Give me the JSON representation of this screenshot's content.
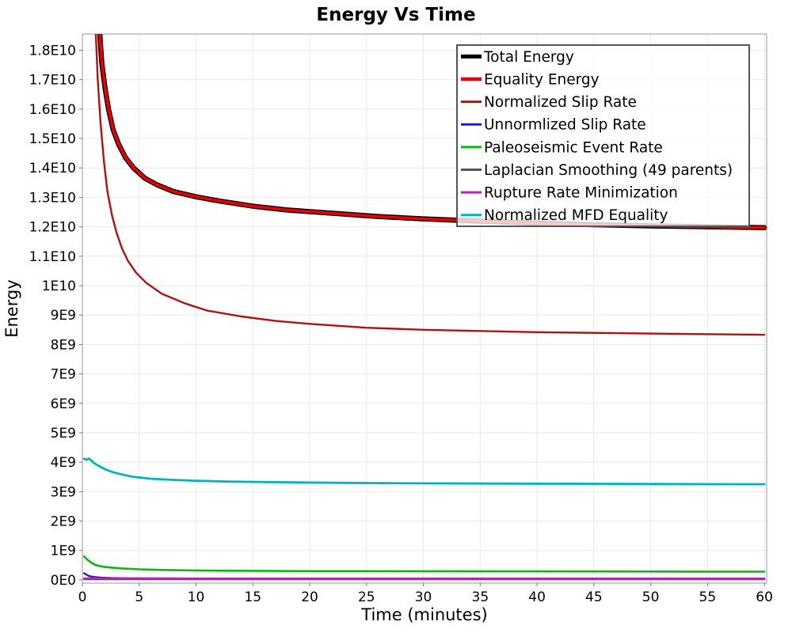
{
  "chart_data": {
    "type": "line",
    "title": "Energy Vs Time",
    "xlabel": "Time (minutes)",
    "ylabel": "Energy",
    "xlim": [
      0,
      60.2
    ],
    "ylim_e9": [
      -0.11,
      18.55
    ],
    "grid": true,
    "x_ticks": [
      0,
      5,
      10,
      15,
      20,
      25,
      30,
      35,
      40,
      45,
      50,
      55,
      60
    ],
    "y_ticks": [
      {
        "v": 0,
        "label": "0E0"
      },
      {
        "v": 1,
        "label": "1E9"
      },
      {
        "v": 2,
        "label": "2E9"
      },
      {
        "v": 3,
        "label": "3E9"
      },
      {
        "v": 4,
        "label": "4E9"
      },
      {
        "v": 5,
        "label": "5E9"
      },
      {
        "v": 6,
        "label": "6E9"
      },
      {
        "v": 7,
        "label": "7E9"
      },
      {
        "v": 8,
        "label": "8E9"
      },
      {
        "v": 9,
        "label": "9E9"
      },
      {
        "v": 10,
        "label": "1E10"
      },
      {
        "v": 11,
        "label": "1.1E10"
      },
      {
        "v": 12,
        "label": "1.2E10"
      },
      {
        "v": 13,
        "label": "1.3E10"
      },
      {
        "v": 14,
        "label": "1.4E10"
      },
      {
        "v": 15,
        "label": "1.5E10"
      },
      {
        "v": 16,
        "label": "1.6E10"
      },
      {
        "v": 17,
        "label": "1.7E10"
      },
      {
        "v": 18,
        "label": "1.8E10"
      }
    ],
    "colors": {
      "grid": "#e9e9e9",
      "plot_border": "#999999",
      "tick_mark": "#777777",
      "legend_border": "#555555",
      "legend_bg": "rgba(255,255,255,0.78)"
    },
    "legend_position": "top-right",
    "series": [
      {
        "name": "Total Energy",
        "color": "#000000",
        "line_width": 6.5,
        "legend_swatch_width": 5,
        "x": [
          1.52,
          1.7,
          2.0,
          2.3,
          2.7,
          3.2,
          3.8,
          4.5,
          5.5,
          6.6,
          8.0,
          10.0,
          12.0,
          15.0,
          18.0,
          22.0,
          26.0,
          30.0,
          35.0,
          40.0,
          45.0,
          50.0,
          55.0,
          60.0
        ],
        "y_e9": [
          18.65,
          17.6,
          16.7,
          16.0,
          15.3,
          14.8,
          14.35,
          14.0,
          13.65,
          13.42,
          13.2,
          13.02,
          12.88,
          12.7,
          12.57,
          12.46,
          12.35,
          12.27,
          12.19,
          12.12,
          12.07,
          12.03,
          12.0,
          11.97
        ]
      },
      {
        "name": "Equality Energy",
        "color": "#e60000",
        "line_width": 3.8,
        "legend_swatch_width": 4.5,
        "x": [
          1.52,
          1.7,
          2.0,
          2.3,
          2.7,
          3.2,
          3.8,
          4.5,
          5.5,
          6.6,
          8.0,
          10.0,
          12.0,
          15.0,
          18.0,
          22.0,
          26.0,
          30.0,
          35.0,
          40.0,
          45.0,
          50.0,
          55.0,
          60.0
        ],
        "y_e9": [
          18.65,
          17.6,
          16.7,
          16.0,
          15.3,
          14.8,
          14.35,
          14.0,
          13.65,
          13.42,
          13.2,
          13.02,
          12.88,
          12.7,
          12.57,
          12.46,
          12.35,
          12.27,
          12.19,
          12.12,
          12.07,
          12.03,
          12.0,
          11.97
        ]
      },
      {
        "name": "Normalized Slip Rate",
        "color": "#b01212",
        "line_width": 2.4,
        "legend_swatch_width": 3,
        "x": [
          1.17,
          1.35,
          1.6,
          1.9,
          2.2,
          2.6,
          3.0,
          3.5,
          4.0,
          4.7,
          5.6,
          7.0,
          9.0,
          11.0,
          14.0,
          17.0,
          20.0,
          25.0,
          30.0,
          40.0,
          50.0,
          60.0
        ],
        "y_e9": [
          18.65,
          17.0,
          15.5,
          14.2,
          13.2,
          12.4,
          11.8,
          11.25,
          10.85,
          10.45,
          10.1,
          9.72,
          9.4,
          9.15,
          8.95,
          8.8,
          8.7,
          8.57,
          8.5,
          8.42,
          8.37,
          8.33
        ]
      },
      {
        "name": "Unnormlized Slip Rate",
        "color": "#2222b2",
        "line_width": 2.4,
        "legend_swatch_width": 3,
        "x": [
          0.15,
          0.3,
          0.6,
          1.0,
          1.6,
          2.5,
          4.0,
          6.0,
          10.0,
          20.0,
          40.0,
          60.0
        ],
        "y_e9": [
          0.23,
          0.19,
          0.13,
          0.1,
          0.08,
          0.065,
          0.055,
          0.05,
          0.045,
          0.042,
          0.04,
          0.04
        ]
      },
      {
        "name": "Paleoseismic Event Rate",
        "color": "#0cb80c",
        "line_width": 2.6,
        "legend_swatch_width": 3,
        "x": [
          0.15,
          0.4,
          0.8,
          1.2,
          1.8,
          2.5,
          3.5,
          5.0,
          7.0,
          10.0,
          15.0,
          20.0,
          30.0,
          40.0,
          50.0,
          60.0
        ],
        "y_e9": [
          0.8,
          0.7,
          0.58,
          0.5,
          0.45,
          0.42,
          0.39,
          0.36,
          0.34,
          0.32,
          0.31,
          0.3,
          0.295,
          0.29,
          0.285,
          0.28
        ]
      },
      {
        "name": "Laplacian Smoothing (49 parents)",
        "color": "#555555",
        "line_width": 2.2,
        "legend_swatch_width": 3,
        "x": [
          0.15,
          60.0
        ],
        "y_e9": [
          0.022,
          0.02
        ]
      },
      {
        "name": "Rupture Rate Minimization",
        "color": "#bb22bb",
        "line_width": 2.6,
        "legend_swatch_width": 3,
        "x": [
          0.15,
          2.0,
          10.0,
          60.0
        ],
        "y_e9": [
          0.05,
          0.048,
          0.046,
          0.045
        ]
      },
      {
        "name": "Normalized MFD Equality",
        "color": "#00b4be",
        "line_width": 2.8,
        "legend_swatch_width": 3,
        "x": [
          0.15,
          0.35,
          0.6,
          1.0,
          1.5,
          2.0,
          2.7,
          3.5,
          4.5,
          6.0,
          8.0,
          10.0,
          13.0,
          17.0,
          22.0,
          30.0,
          40.0,
          50.0,
          60.0
        ],
        "y_e9": [
          4.12,
          4.08,
          4.12,
          3.98,
          3.86,
          3.76,
          3.66,
          3.58,
          3.5,
          3.44,
          3.4,
          3.37,
          3.34,
          3.32,
          3.3,
          3.28,
          3.27,
          3.26,
          3.25
        ]
      }
    ]
  }
}
